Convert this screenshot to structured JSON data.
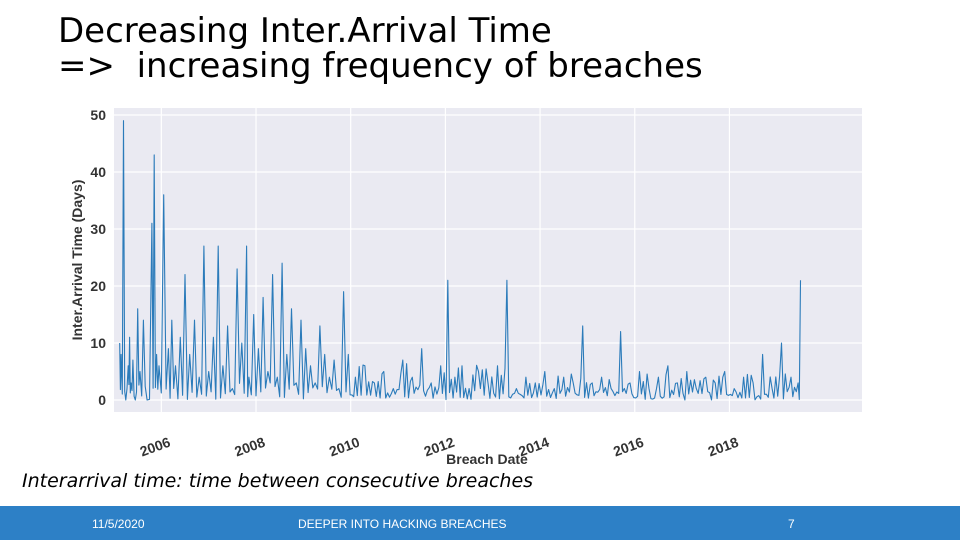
{
  "slide": {
    "title_line1": "Decreasing Inter.Arrival Time",
    "title_arrow": "=>",
    "title_line2": "increasing frequency of breaches",
    "caption": "Interarrival time: time between consecutive breaches"
  },
  "footer": {
    "date": "11/5/2020",
    "center": "DEEPER INTO HACKING BREACHES",
    "page": "7"
  },
  "chart_data": {
    "type": "line",
    "xlabel": "Breach Date",
    "ylabel": "Inter.Arrival Time (Days)",
    "xlim": [
      2005.0,
      2020.8
    ],
    "ylim": [
      0,
      50
    ],
    "x_ticks": [
      "2006",
      "2008",
      "2010",
      "2012",
      "2014",
      "2016",
      "2018"
    ],
    "y_ticks": [
      0,
      10,
      20,
      30,
      40,
      50
    ],
    "grid": true,
    "series_color": "#2b7bba",
    "background": "#eaeaf2",
    "series": [
      {
        "x": [
          2005.12,
          2005.15,
          2005.2,
          2005.25,
          2005.3,
          2005.33,
          2005.36,
          2005.4,
          2005.45,
          2005.5,
          2005.55,
          2005.62,
          2005.7,
          2005.8,
          2005.85,
          2005.9,
          2005.95,
          2006.05,
          2006.15,
          2006.22,
          2006.3,
          2006.4,
          2006.5,
          2006.6,
          2006.7,
          2006.8,
          2006.9,
          2007.0,
          2007.1,
          2007.2,
          2007.3,
          2007.4,
          2007.5,
          2007.6,
          2007.7,
          2007.8,
          2007.85,
          2007.95,
          2008.05,
          2008.15,
          2008.25,
          2008.35,
          2008.45,
          2008.55,
          2008.65,
          2008.75,
          2008.85,
          2008.95,
          2009.05,
          2009.15,
          2009.25,
          2009.35,
          2009.45,
          2009.55,
          2009.65,
          2009.75,
          2009.85,
          2009.95,
          2010.1,
          2010.3,
          2010.5,
          2010.7,
          2010.9,
          2011.1,
          2011.3,
          2011.5,
          2011.7,
          2011.9,
          2012.05,
          2012.2,
          2012.35,
          2012.5,
          2012.7,
          2012.9,
          2013.1,
          2013.3,
          2013.5,
          2013.7,
          2013.9,
          2014.1,
          2014.3,
          2014.5,
          2014.7,
          2014.9,
          2015.1,
          2015.3,
          2015.5,
          2015.7,
          2015.9,
          2016.1,
          2016.3,
          2016.5,
          2016.7,
          2016.9,
          2017.1,
          2017.3,
          2017.5,
          2017.7,
          2017.9,
          2018.1,
          2018.3,
          2018.5,
          2018.7,
          2018.9,
          2019.1,
          2019.3,
          2019.45,
          2019.5
        ],
        "values": [
          10,
          8,
          49,
          0,
          6,
          11,
          3,
          7,
          0,
          16,
          5,
          14,
          0,
          31,
          43,
          8,
          6,
          36,
          9,
          14,
          6,
          11,
          22,
          8,
          14,
          4,
          27,
          5,
          11,
          27,
          6,
          13,
          2,
          23,
          10,
          27,
          4,
          15,
          9,
          18,
          5,
          22,
          4,
          24,
          8,
          16,
          3,
          14,
          9,
          6,
          3,
          13,
          8,
          4,
          7,
          2,
          19,
          8,
          4,
          6,
          3,
          5,
          2,
          7,
          4,
          9,
          3,
          6,
          21,
          4,
          6,
          2,
          5,
          3,
          6,
          21,
          2,
          4,
          3,
          5,
          2,
          4,
          3,
          13,
          3,
          4,
          2,
          12,
          3,
          5,
          2,
          4,
          6,
          3,
          5,
          2,
          4,
          3,
          5,
          2,
          4,
          3,
          8,
          2,
          10,
          4,
          3,
          21
        ]
      }
    ]
  }
}
